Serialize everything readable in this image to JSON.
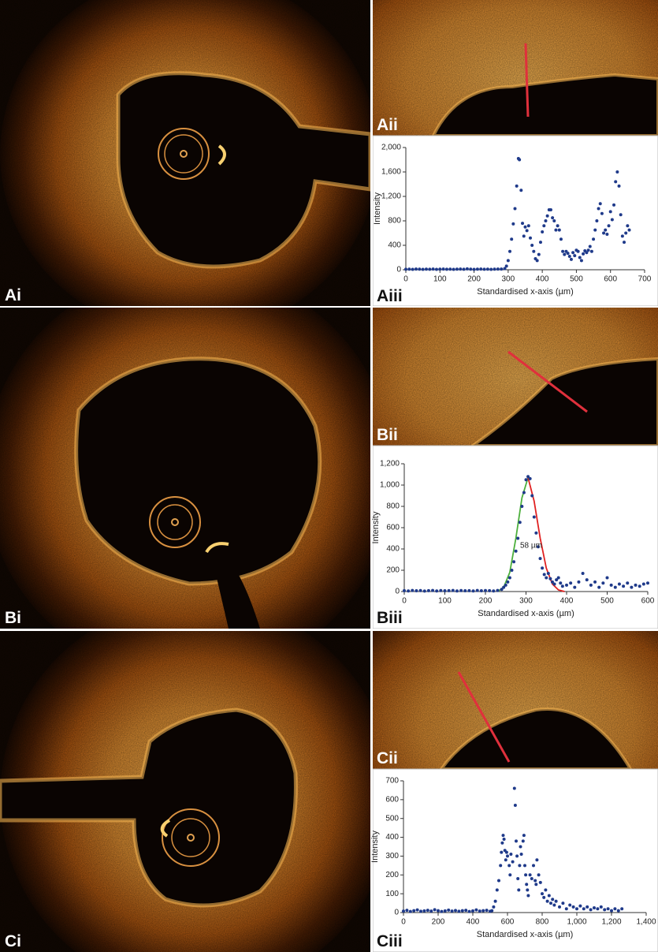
{
  "images": [
    {
      "label": "Ai"
    },
    {
      "label": "Aii"
    },
    {
      "label": "Bi"
    },
    {
      "label": "Bii"
    },
    {
      "label": "Ci"
    },
    {
      "label": "Cii"
    }
  ],
  "chart_data": [
    {
      "type": "scatter",
      "label": "Aiii",
      "x_label": "Standardised x-axis (µm)",
      "y_label": "Intensity",
      "color": "#1f3a8a",
      "xlim": [
        0,
        700
      ],
      "xticks": [
        0,
        100,
        200,
        300,
        400,
        500,
        600,
        700
      ],
      "ylim": [
        0,
        2000
      ],
      "yticks": [
        0,
        400,
        800,
        {
          "value": 1200,
          "label": "1,200"
        },
        {
          "value": 1600,
          "label": "1,600"
        },
        {
          "value": 2000,
          "label": "2,000"
        }
      ],
      "x": [
        0,
        10,
        20,
        30,
        40,
        50,
        60,
        70,
        80,
        90,
        100,
        110,
        120,
        130,
        140,
        150,
        160,
        170,
        180,
        190,
        200,
        210,
        220,
        230,
        240,
        250,
        260,
        270,
        280,
        290,
        295,
        300,
        305,
        310,
        315,
        320,
        325,
        330,
        333,
        338,
        342,
        346,
        350,
        355,
        360,
        365,
        370,
        375,
        380,
        385,
        390,
        395,
        400,
        405,
        410,
        415,
        420,
        425,
        430,
        435,
        440,
        445,
        450,
        455,
        460,
        465,
        470,
        475,
        480,
        485,
        490,
        495,
        500,
        505,
        510,
        515,
        520,
        525,
        530,
        535,
        540,
        545,
        550,
        555,
        560,
        565,
        570,
        575,
        580,
        585,
        590,
        595,
        600,
        605,
        610,
        615,
        620,
        625,
        630,
        635,
        640,
        645,
        650,
        655
      ],
      "values": [
        8,
        10,
        6,
        12,
        9,
        7,
        10,
        8,
        11,
        6,
        9,
        12,
        8,
        10,
        7,
        9,
        11,
        8,
        14,
        10,
        7,
        9,
        12,
        8,
        10,
        6,
        9,
        11,
        12,
        20,
        60,
        150,
        300,
        500,
        750,
        1000,
        1370,
        1820,
        1800,
        1300,
        760,
        550,
        700,
        640,
        720,
        520,
        400,
        300,
        180,
        150,
        250,
        450,
        620,
        720,
        800,
        880,
        980,
        980,
        850,
        800,
        650,
        720,
        650,
        500,
        300,
        250,
        300,
        270,
        220,
        170,
        280,
        230,
        320,
        300,
        200,
        150,
        260,
        310,
        280,
        320,
        380,
        300,
        500,
        650,
        800,
        1000,
        1080,
        920,
        600,
        650,
        580,
        720,
        950,
        820,
        1060,
        1440,
        1600,
        1370,
        900,
        550,
        450,
        600,
        720,
        650
      ]
    },
    {
      "type": "scatter",
      "label": "Biii",
      "x_label": "Standardised x-axis (µm)",
      "y_label": "Intensity",
      "color": "#1f3a8a",
      "annotation": "58 µm",
      "xlim": [
        0,
        600
      ],
      "xticks": [
        0,
        100,
        200,
        300,
        400,
        500,
        600
      ],
      "ylim": [
        0,
        1200
      ],
      "yticks": [
        0,
        200,
        400,
        600,
        800,
        {
          "value": 1000,
          "label": "1,000"
        },
        {
          "value": 1200,
          "label": "1,200"
        }
      ],
      "x": [
        0,
        10,
        20,
        30,
        40,
        50,
        60,
        70,
        80,
        90,
        100,
        110,
        120,
        130,
        140,
        150,
        160,
        170,
        180,
        190,
        200,
        210,
        220,
        230,
        240,
        245,
        250,
        255,
        260,
        265,
        270,
        275,
        280,
        285,
        290,
        295,
        300,
        305,
        310,
        315,
        320,
        325,
        330,
        335,
        340,
        345,
        350,
        355,
        360,
        365,
        370,
        375,
        380,
        385,
        390,
        400,
        410,
        420,
        430,
        440,
        450,
        460,
        470,
        480,
        490,
        500,
        510,
        520,
        530,
        540,
        550,
        560,
        570,
        580,
        590,
        600
      ],
      "values": [
        8,
        6,
        10,
        7,
        9,
        5,
        8,
        10,
        6,
        9,
        7,
        8,
        10,
        6,
        9,
        7,
        8,
        6,
        10,
        7,
        9,
        8,
        6,
        10,
        20,
        40,
        60,
        90,
        130,
        200,
        280,
        380,
        500,
        650,
        800,
        930,
        1050,
        1080,
        1060,
        900,
        700,
        550,
        420,
        310,
        220,
        160,
        130,
        170,
        120,
        90,
        70,
        110,
        130,
        80,
        50,
        60,
        80,
        40,
        90,
        170,
        110,
        60,
        90,
        40,
        80,
        130,
        60,
        40,
        70,
        50,
        80,
        40,
        60,
        50,
        70,
        80
      ],
      "fits": [
        {
          "color": "#4caf3c",
          "x": [
            230,
            245,
            260,
            275,
            290,
            305
          ],
          "values": [
            0,
            40,
            180,
            500,
            880,
            1070
          ]
        },
        {
          "color": "#e02020",
          "x": [
            305,
            320,
            335,
            350,
            365,
            380,
            395
          ],
          "values": [
            1070,
            850,
            500,
            220,
            70,
            15,
            0
          ]
        }
      ]
    },
    {
      "type": "scatter",
      "label": "Ciii",
      "x_label": "Standardised x-axis (µm)",
      "y_label": "Intensity",
      "color": "#1f3a8a",
      "xlim": [
        0,
        1400
      ],
      "xticks": [
        0,
        200,
        400,
        600,
        800,
        {
          "value": 1000,
          "label": "1,000"
        },
        {
          "value": 1200,
          "label": "1,200"
        },
        {
          "value": 1400,
          "label": "1,400"
        }
      ],
      "ylim": [
        0,
        700
      ],
      "yticks": [
        0,
        100,
        200,
        300,
        400,
        500,
        600,
        700
      ],
      "x": [
        0,
        20,
        40,
        60,
        80,
        100,
        120,
        140,
        160,
        180,
        200,
        220,
        240,
        260,
        280,
        300,
        320,
        340,
        360,
        380,
        400,
        420,
        440,
        460,
        480,
        500,
        510,
        520,
        530,
        540,
        550,
        560,
        565,
        570,
        575,
        580,
        585,
        590,
        595,
        600,
        610,
        615,
        620,
        630,
        640,
        645,
        650,
        655,
        660,
        665,
        670,
        675,
        680,
        690,
        695,
        700,
        705,
        710,
        715,
        720,
        730,
        740,
        750,
        760,
        765,
        770,
        780,
        790,
        800,
        810,
        820,
        830,
        840,
        850,
        860,
        870,
        880,
        900,
        920,
        940,
        960,
        980,
        1000,
        1020,
        1040,
        1060,
        1080,
        1100,
        1120,
        1140,
        1160,
        1180,
        1200,
        1220,
        1240,
        1260
      ],
      "values": [
        8,
        12,
        6,
        10,
        14,
        7,
        9,
        12,
        8,
        15,
        10,
        6,
        9,
        13,
        8,
        11,
        7,
        10,
        12,
        6,
        9,
        14,
        8,
        10,
        12,
        7,
        10,
        30,
        60,
        120,
        170,
        250,
        320,
        370,
        410,
        390,
        330,
        280,
        320,
        300,
        250,
        200,
        310,
        270,
        660,
        570,
        380,
        300,
        180,
        120,
        250,
        350,
        310,
        380,
        410,
        250,
        200,
        150,
        120,
        90,
        200,
        180,
        250,
        170,
        150,
        280,
        200,
        160,
        100,
        80,
        120,
        60,
        90,
        50,
        70,
        40,
        60,
        30,
        50,
        20,
        40,
        30,
        20,
        35,
        20,
        30,
        15,
        25,
        20,
        30,
        15,
        20,
        10,
        20,
        10,
        20
      ]
    }
  ]
}
